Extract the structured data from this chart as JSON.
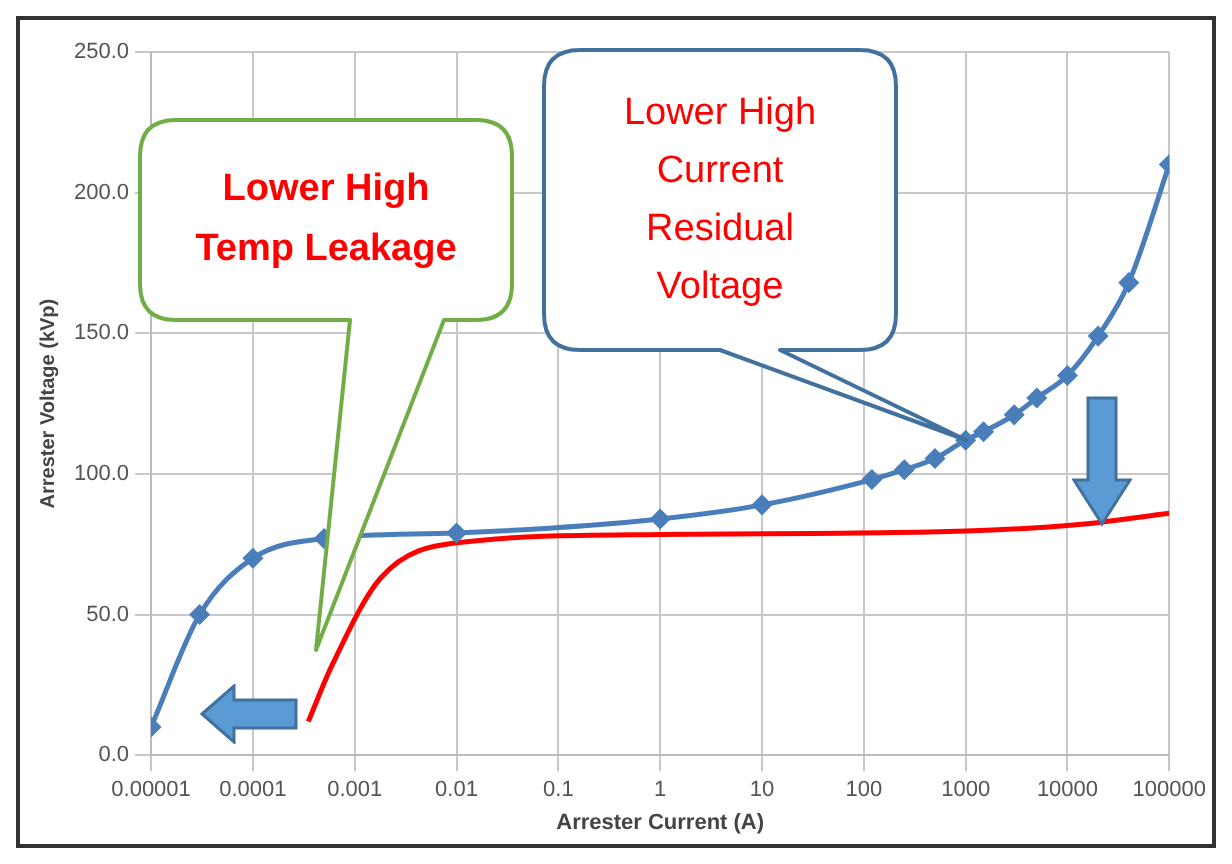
{
  "chart_data": {
    "type": "line",
    "xlabel": "Arrester Current (A)",
    "ylabel": "Arrester Voltage (kVp)",
    "log": "x",
    "grid": true,
    "legend": false,
    "xlim": [
      1e-05,
      100000
    ],
    "xticks": [
      {
        "value": 1e-05,
        "label": "0.00001"
      },
      {
        "value": 0.0001,
        "label": "0.0001"
      },
      {
        "value": 0.001,
        "label": "0.001"
      },
      {
        "value": 0.01,
        "label": "0.01"
      },
      {
        "value": 0.1,
        "label": "0.1"
      },
      {
        "value": 1,
        "label": "1"
      },
      {
        "value": 10,
        "label": "10"
      },
      {
        "value": 100,
        "label": "100"
      },
      {
        "value": 1000,
        "label": "1000"
      },
      {
        "value": 10000,
        "label": "10000"
      },
      {
        "value": 100000,
        "label": "100000"
      }
    ],
    "ylim": [
      0,
      250
    ],
    "yticks": [
      {
        "value": 0,
        "label": "0.0"
      },
      {
        "value": 50,
        "label": "50.0"
      },
      {
        "value": 100,
        "label": "100.0"
      },
      {
        "value": 150,
        "label": "150.0"
      },
      {
        "value": 200,
        "label": "200.0"
      },
      {
        "value": 250,
        "label": "250.0"
      }
    ],
    "series": [
      {
        "color": "#4a7ebb",
        "marker": "diamond",
        "x": [
          1e-05,
          3e-05,
          0.0001,
          0.0005,
          0.01,
          1,
          10,
          120,
          250,
          500,
          1000,
          1500,
          3000,
          5000,
          10000,
          20000,
          40000,
          100000
        ],
        "values": [
          10,
          50,
          70,
          77,
          79,
          84,
          89,
          98,
          101.5,
          105.5,
          112,
          115,
          121,
          127,
          135,
          149,
          168,
          210
        ]
      },
      {
        "color": "#ff0000",
        "marker": "none",
        "x": [
          0.00035,
          0.0006,
          0.0018,
          0.01,
          1,
          1000,
          13000,
          100000
        ],
        "values": [
          12,
          32,
          63,
          75.5,
          78.5,
          79.7,
          82,
          86
        ]
      }
    ],
    "annotations": [
      "Lower High Temp Leakage",
      "Lower High Current Residual Voltage"
    ]
  }
}
